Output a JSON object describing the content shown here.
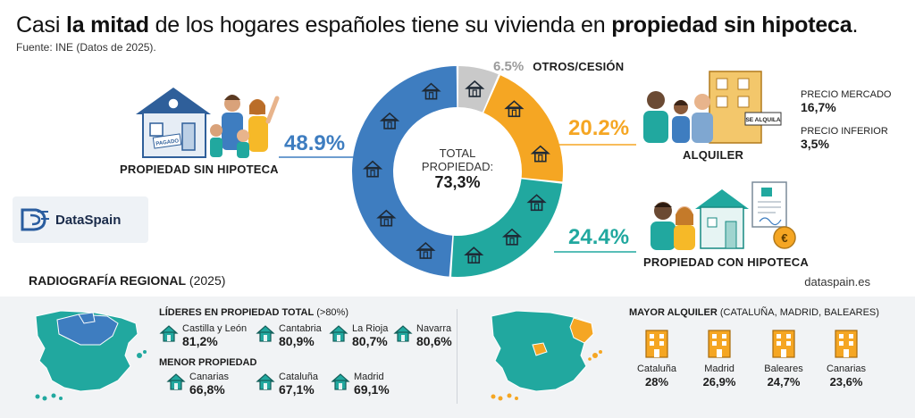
{
  "header": {
    "title_part1": "Casi ",
    "title_bold1": "la mitad",
    "title_part2": " de los hogares españoles tiene su vivienda en ",
    "title_bold2": "propiedad sin hipoteca",
    "title_end": ".",
    "source": "Fuente: INE (Datos de 2025)."
  },
  "donut": {
    "total_label": "TOTAL PROPIEDAD:",
    "total_value": "73,3%",
    "segments": [
      {
        "name": "PROPIEDAD SIN HIPOTECA",
        "value": 48.9,
        "label": "48.9%",
        "color": "#3e7dc0"
      },
      {
        "name": "OTROS/CESIÓN",
        "value": 6.5,
        "label": "6.5%",
        "color": "#c9c9c9"
      },
      {
        "name": "ALQUILER",
        "value": 20.2,
        "label": "20.2%",
        "color": "#f5a623"
      },
      {
        "name": "PROPIEDAD CON HIPOTECA",
        "value": 24.4,
        "label": "24.4%",
        "color": "#21a89f"
      }
    ]
  },
  "rent_breakdown": {
    "market_label": "PRECIO MERCADO",
    "market_value": "16,7%",
    "lower_label": "PRECIO INFERIOR",
    "lower_value": "3,5%"
  },
  "illustrations": {
    "paid_stamp": "PAGADO",
    "rent_sign": "SE ALQUILA"
  },
  "brand": {
    "name": "DataSpain",
    "url": "dataspain.es"
  },
  "regional": {
    "title": "RADIOGRAFÍA REGIONAL",
    "year": " (2025)",
    "leaders_title": "LÍDERES EN PROPIEDAD TOTAL",
    "leaders_note": " (>80%)",
    "leaders": [
      {
        "name": "Castilla y León",
        "value": "81,2%"
      },
      {
        "name": "Cantabria",
        "value": "80,9%"
      },
      {
        "name": "La Rioja",
        "value": "80,7%"
      },
      {
        "name": "Navarra",
        "value": "80,6%"
      }
    ],
    "lowest_title": "MENOR PROPIEDAD",
    "lowest": [
      {
        "name": "Canarias",
        "value": "66,8%"
      },
      {
        "name": "Cataluña",
        "value": "67,1%"
      },
      {
        "name": "Madrid",
        "value": "69,1%"
      }
    ],
    "rent_title": "MAYOR ALQUILER",
    "rent_note": " (CATALUÑA, MADRID, BALEARES)",
    "rent": [
      {
        "name": "Cataluña",
        "value": "28%"
      },
      {
        "name": "Madrid",
        "value": "26,9%"
      },
      {
        "name": "Baleares",
        "value": "24,7%"
      },
      {
        "name": "Canarias",
        "value": "23,6%"
      }
    ]
  },
  "colors": {
    "blue": "#3e7dc0",
    "teal": "#21a89f",
    "orange": "#f5a623",
    "grey": "#c9c9c9"
  }
}
